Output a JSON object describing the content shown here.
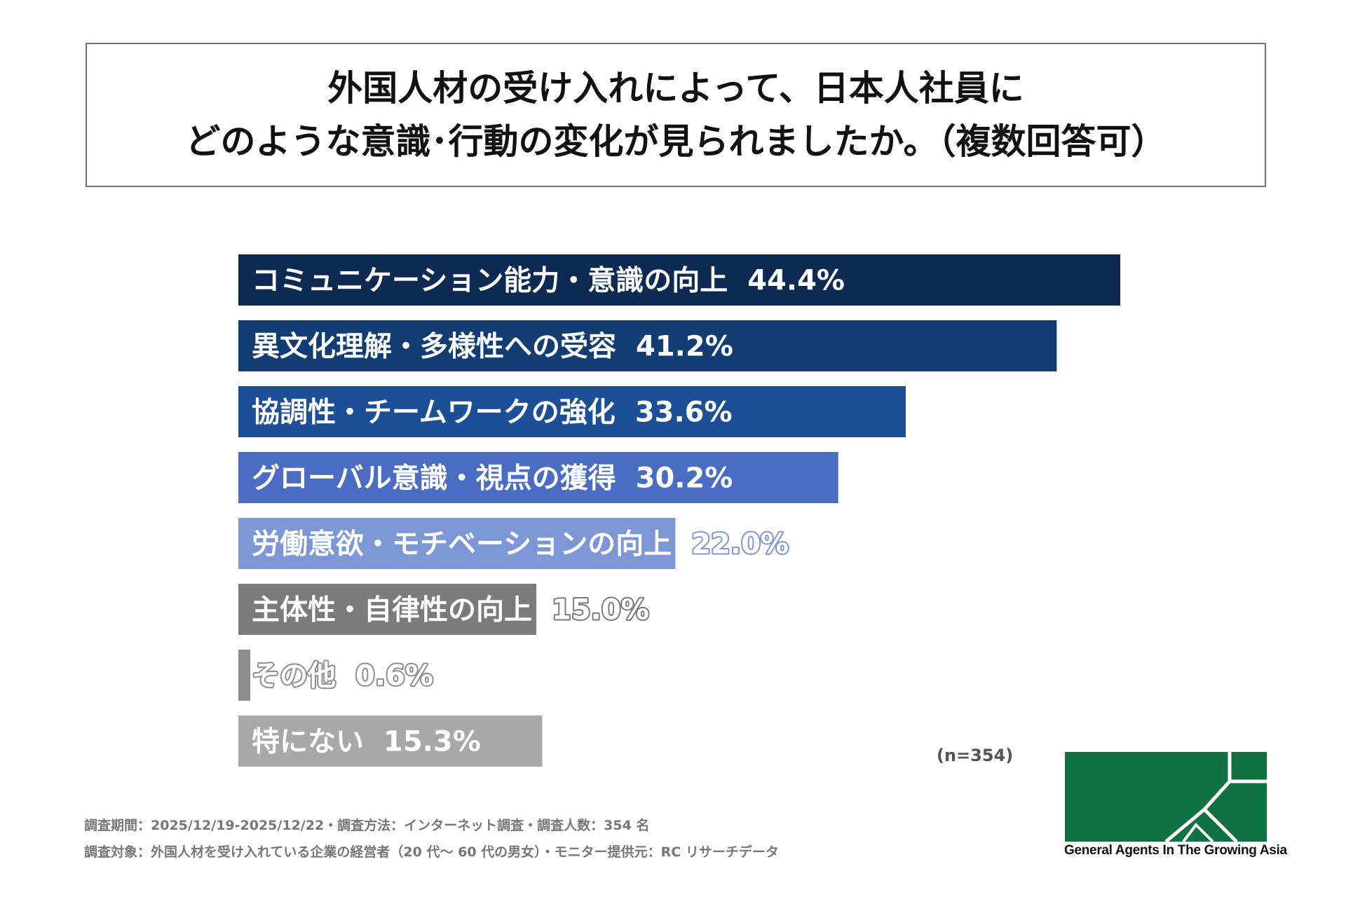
{
  "title": {
    "line1": "外国人材の受け入れによって、日本人社員に",
    "line2": "どのような意識･行動の変化が見られましたか。（複数回答可）"
  },
  "chart_data": {
    "type": "bar",
    "orientation": "horizontal",
    "categories": [
      "コミュニケーション能力・意識の向上",
      "異文化理解・多様性への受容",
      "協調性・チームワークの強化",
      "グローバル意識・視点の獲得",
      "労働意欲・モチベーションの向上",
      "主体性・自律性の向上",
      "その他",
      "特にない"
    ],
    "values": [
      44.4,
      41.2,
      33.6,
      30.2,
      22.0,
      15.0,
      0.6,
      15.3
    ],
    "value_labels": [
      "44.4%",
      "41.2%",
      "33.6%",
      "30.2%",
      "22.0%",
      "15.0%",
      "0.6%",
      "15.3%"
    ],
    "colors": [
      "#0d2a52",
      "#123d73",
      "#1d4f96",
      "#4a6cc2",
      "#7d96d6",
      "#7b7b7b",
      "#8e8e8e",
      "#a8a8a8"
    ],
    "xlim": [
      0,
      100
    ],
    "grid": false,
    "legend": "none"
  },
  "sample_size": "(n=354)",
  "footnotes": {
    "line1": "調査期間：2025/12/19-2025/12/22・調査方法：インターネット調査・調査人数：354 名",
    "line2": "調査対象：外国人材を受け入れている企業の経営者（20 代～ 60 代の男女）・モニター提供元：RC リサーチデータ"
  },
  "logo": {
    "text": "General Agents In The Growing Asia",
    "color": "#0f7240"
  }
}
